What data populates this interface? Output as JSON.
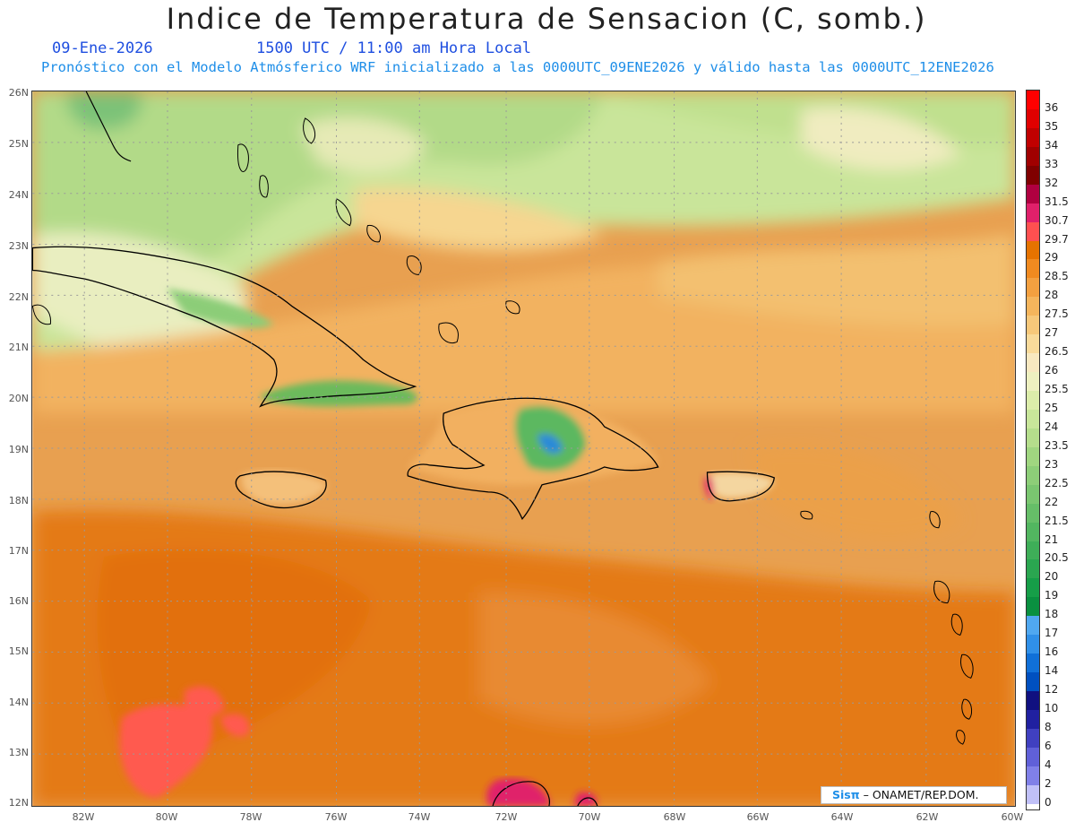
{
  "header": {
    "title": "Indice de Temperatura de Sensacion (C, somb.)",
    "date": "09-Ene-2026",
    "time": "1500 UTC / 11:00 am Hora Local",
    "subtitle": "Pronóstico con el Modelo Atmósferico WRF inicializado a las 0000UTC_09ENE2026 y válido hasta las  0000UTC_12ENE2026"
  },
  "axes": {
    "lat_labels": [
      "26N",
      "25N",
      "24N",
      "23N",
      "22N",
      "21N",
      "20N",
      "19N",
      "18N",
      "17N",
      "16N",
      "15N",
      "14N",
      "13N",
      "12N"
    ],
    "lon_labels": [
      "82W",
      "80W",
      "78W",
      "76W",
      "74W",
      "72W",
      "70W",
      "68W",
      "66W",
      "64W",
      "62W",
      "60W"
    ]
  },
  "colorbar": {
    "labels": [
      "36",
      "35",
      "34",
      "33",
      "32",
      "31.5",
      "30.7",
      "29.7",
      "29",
      "28.5",
      "28",
      "27.5",
      "27",
      "26.5",
      "26",
      "25.5",
      "25",
      "24",
      "23.5",
      "23",
      "22.5",
      "22",
      "21.5",
      "21",
      "20.5",
      "20",
      "19",
      "18",
      "17",
      "16",
      "14",
      "12",
      "10",
      "8",
      "6",
      "4",
      "2",
      "0"
    ],
    "colors": [
      "#ff0000",
      "#e00000",
      "#c00000",
      "#a00000",
      "#800000",
      "#b00040",
      "#e0206a",
      "#ff5050",
      "#e67300",
      "#f08a20",
      "#f3a040",
      "#f5b55c",
      "#f7c87a",
      "#f9da9a",
      "#f8e8c0",
      "#eef0c0",
      "#dcedaa",
      "#c8e69a",
      "#b5de8c",
      "#a0d680",
      "#8dce78",
      "#7ac670",
      "#66be68",
      "#52b660",
      "#3eae58",
      "#2aa650",
      "#169e48",
      "#0a9040",
      "#50a8f0",
      "#3090e8",
      "#1070d8",
      "#0050c0",
      "#101080",
      "#2020a0",
      "#4040c0",
      "#6060d8",
      "#8080e8",
      "#c0c0f8"
    ]
  },
  "credit": {
    "brand": "Sisπ",
    "text": "– ONAMET/REP.DOM."
  }
}
